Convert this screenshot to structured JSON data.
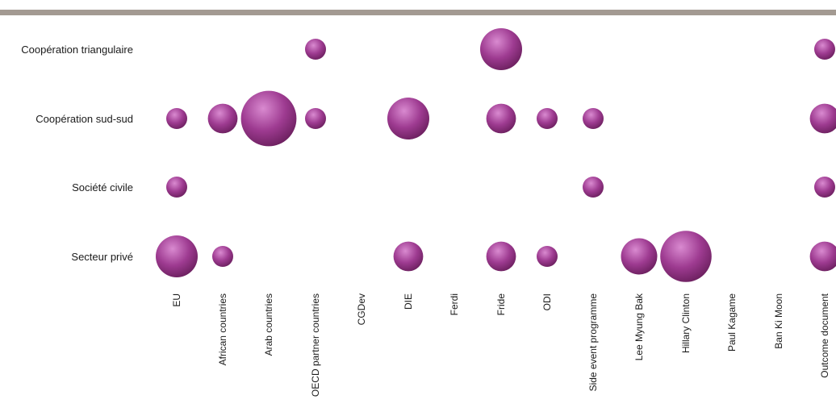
{
  "chart_data": {
    "type": "bubble",
    "title": "",
    "xlabel": "",
    "ylabel": "",
    "grid": false,
    "legend": "none",
    "colors": {
      "top_rule": "#a39a92",
      "bubble_light": "#d98ad0",
      "bubble_mid": "#9e3b91",
      "bubble_dark": "#6b1f5e"
    },
    "categories": [
      "EU",
      "African countries",
      "Arab countries",
      "OECD partner countries",
      "CGDev",
      "DIE",
      "Ferdi",
      "Fride",
      "ODI",
      "Side event programme",
      "Lee Myung Bak",
      "Hillary Clinton",
      "Paul Kagame",
      "Ban Ki Moon",
      "Outcome document"
    ],
    "rows": [
      "Coopération triangulaire",
      "Coopération sud-sud",
      "Société civile",
      "Secteur privé"
    ],
    "points": [
      {
        "row": "Coopération triangulaire",
        "category": "OECD partner countries",
        "value": 1
      },
      {
        "row": "Coopération triangulaire",
        "category": "Fride",
        "value": 4
      },
      {
        "row": "Coopération triangulaire",
        "category": "Outcome document",
        "value": 1
      },
      {
        "row": "Coopération sud-sud",
        "category": "EU",
        "value": 1
      },
      {
        "row": "Coopération sud-sud",
        "category": "African countries",
        "value": 2
      },
      {
        "row": "Coopération sud-sud",
        "category": "Arab countries",
        "value": 7
      },
      {
        "row": "Coopération sud-sud",
        "category": "OECD partner countries",
        "value": 1
      },
      {
        "row": "Coopération sud-sud",
        "category": "DIE",
        "value": 4
      },
      {
        "row": "Coopération sud-sud",
        "category": "Fride",
        "value": 2
      },
      {
        "row": "Coopération sud-sud",
        "category": "ODI",
        "value": 1
      },
      {
        "row": "Coopération sud-sud",
        "category": "Side event programme",
        "value": 1
      },
      {
        "row": "Coopération sud-sud",
        "category": "Outcome document",
        "value": 2
      },
      {
        "row": "Société civile",
        "category": "EU",
        "value": 1
      },
      {
        "row": "Société civile",
        "category": "Side event programme",
        "value": 1
      },
      {
        "row": "Société civile",
        "category": "Outcome document",
        "value": 1
      },
      {
        "row": "Secteur privé",
        "category": "EU",
        "value": 4
      },
      {
        "row": "Secteur privé",
        "category": "African countries",
        "value": 1
      },
      {
        "row": "Secteur privé",
        "category": "DIE",
        "value": 2
      },
      {
        "row": "Secteur privé",
        "category": "Fride",
        "value": 2
      },
      {
        "row": "Secteur privé",
        "category": "ODI",
        "value": 1
      },
      {
        "row": "Secteur privé",
        "category": "Lee Myung Bak",
        "value": 3
      },
      {
        "row": "Secteur privé",
        "category": "Hillary Clinton",
        "value": 6
      },
      {
        "row": "Secteur privé",
        "category": "Outcome document",
        "value": 2
      }
    ]
  }
}
